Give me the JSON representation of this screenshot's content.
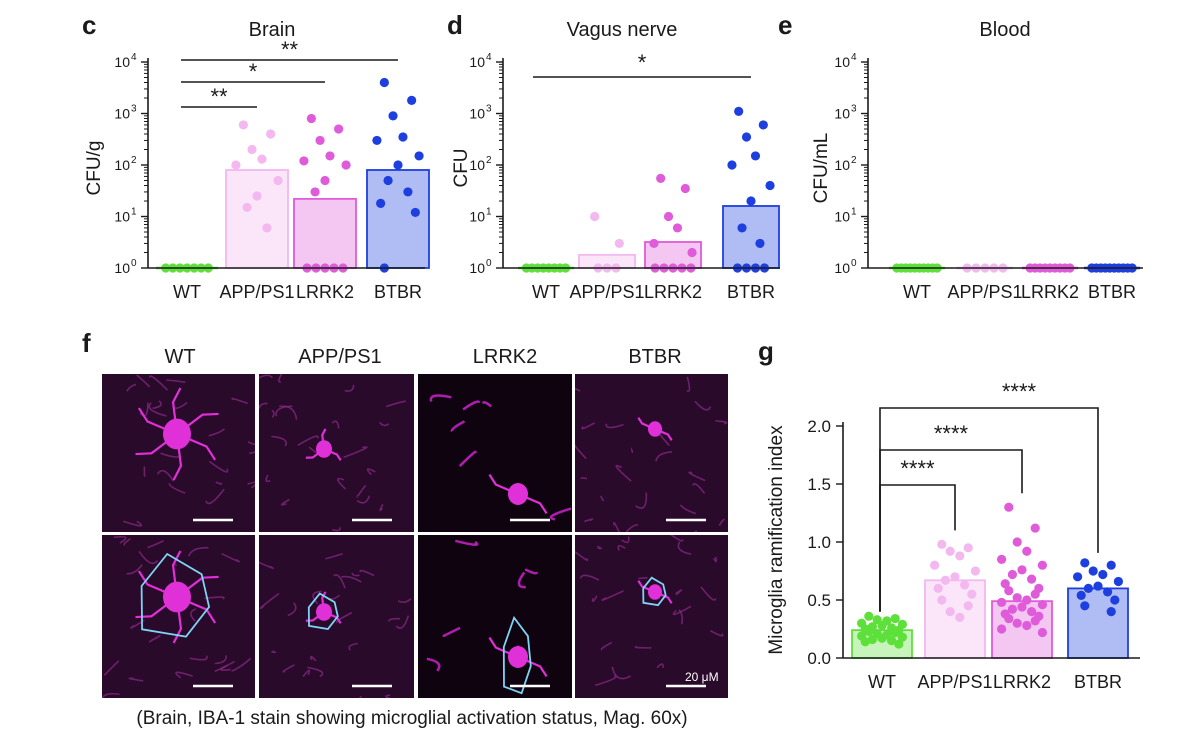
{
  "colors": {
    "wt": "#5ee03a",
    "app": "#f3b8ef",
    "lrrk2": "#df5bd9",
    "btbr": "#1d3fe0",
    "axis": "#1a1a1a",
    "hull": "#7fd3f5"
  },
  "chart_data": [
    {
      "id": "c",
      "panel_label": "c",
      "type": "bar",
      "title": "Brain",
      "ylabel": "CFU/g",
      "yscale": "log",
      "ylim": [
        1,
        10000
      ],
      "yticks": [
        {
          "base": "10",
          "exp": "0"
        },
        {
          "base": "10",
          "exp": "1"
        },
        {
          "base": "10",
          "exp": "2"
        },
        {
          "base": "10",
          "exp": "3"
        },
        {
          "base": "10",
          "exp": "4"
        }
      ],
      "categories": [
        "WT",
        "APP/PS1",
        "LRRK2",
        "BTBR"
      ],
      "bar_values": [
        1,
        80,
        22,
        80
      ],
      "points": [
        [
          1,
          1,
          1,
          1,
          1,
          1,
          1
        ],
        [
          600,
          400,
          200,
          130,
          100,
          50,
          25,
          15,
          6
        ],
        [
          800,
          500,
          300,
          150,
          120,
          100,
          50,
          30,
          1,
          1,
          1,
          1,
          1
        ],
        [
          4000,
          1800,
          900,
          350,
          300,
          150,
          100,
          50,
          30,
          18,
          12,
          1
        ]
      ],
      "significance": [
        {
          "from": 0,
          "to": 1,
          "label": "**"
        },
        {
          "from": 0,
          "to": 2,
          "label": "*"
        },
        {
          "from": 0,
          "to": 3,
          "label": "**"
        }
      ]
    },
    {
      "id": "d",
      "panel_label": "d",
      "type": "bar",
      "title": "Vagus nerve",
      "ylabel": "CFU",
      "yscale": "log",
      "ylim": [
        1,
        10000
      ],
      "yticks": [
        {
          "base": "10",
          "exp": "0"
        },
        {
          "base": "10",
          "exp": "1"
        },
        {
          "base": "10",
          "exp": "2"
        },
        {
          "base": "10",
          "exp": "3"
        },
        {
          "base": "10",
          "exp": "4"
        }
      ],
      "categories": [
        "WT",
        "APP/PS1",
        "LRRK2",
        "BTBR"
      ],
      "bar_values": [
        1,
        1.8,
        3.2,
        16
      ],
      "points": [
        [
          1,
          1,
          1,
          1,
          1,
          1,
          1,
          1
        ],
        [
          10,
          3,
          1,
          1,
          1
        ],
        [
          55,
          35,
          10,
          6,
          3,
          2,
          1,
          1,
          1,
          1,
          1
        ],
        [
          1100,
          600,
          350,
          150,
          100,
          40,
          20,
          6,
          3,
          1,
          1,
          1,
          1
        ]
      ],
      "significance": [
        {
          "from": 0,
          "to": 3,
          "label": "*"
        }
      ]
    },
    {
      "id": "e",
      "panel_label": "e",
      "type": "bar",
      "title": "Blood",
      "ylabel": "CFU/mL",
      "yscale": "log",
      "ylim": [
        1,
        10000
      ],
      "yticks": [
        {
          "base": "10",
          "exp": "0"
        },
        {
          "base": "10",
          "exp": "1"
        },
        {
          "base": "10",
          "exp": "2"
        },
        {
          "base": "10",
          "exp": "3"
        },
        {
          "base": "10",
          "exp": "4"
        }
      ],
      "categories": [
        "WT",
        "APP/PS1",
        "LRRK2",
        "BTBR"
      ],
      "bar_values": [
        1,
        1,
        1,
        1
      ],
      "points": [
        [
          1,
          1,
          1,
          1,
          1,
          1,
          1,
          1,
          1,
          1
        ],
        [
          1,
          1,
          1,
          1,
          1
        ],
        [
          1,
          1,
          1,
          1,
          1,
          1,
          1,
          1,
          1
        ],
        [
          1,
          1,
          1,
          1,
          1,
          1,
          1,
          1,
          1,
          1
        ]
      ],
      "significance": []
    },
    {
      "id": "g",
      "panel_label": "g",
      "type": "bar",
      "title": "",
      "ylabel": "Microglia ramification index",
      "yscale": "linear",
      "ylim": [
        0,
        2.0
      ],
      "yticks": [
        {
          "value": 0,
          "label": "0.0"
        },
        {
          "value": 0.5,
          "label": "0.5"
        },
        {
          "value": 1.0,
          "label": "1.0"
        },
        {
          "value": 1.5,
          "label": "1.5"
        },
        {
          "value": 2.0,
          "label": "2.0"
        }
      ],
      "categories": [
        "WT",
        "APP/PS1",
        "LRRK2",
        "BTBR"
      ],
      "bar_values": [
        0.24,
        0.67,
        0.49,
        0.6
      ],
      "points": [
        [
          0.36,
          0.34,
          0.33,
          0.32,
          0.3,
          0.29,
          0.28,
          0.27,
          0.26,
          0.25,
          0.24,
          0.23,
          0.22,
          0.21,
          0.2,
          0.19,
          0.18,
          0.17,
          0.16,
          0.15,
          0.14,
          0.12
        ],
        [
          0.98,
          0.95,
          0.92,
          0.88,
          0.8,
          0.75,
          0.7,
          0.67,
          0.63,
          0.6,
          0.55,
          0.5,
          0.45,
          0.4,
          0.35
        ],
        [
          1.3,
          1.12,
          1.0,
          0.92,
          0.85,
          0.8,
          0.76,
          0.72,
          0.68,
          0.64,
          0.6,
          0.58,
          0.55,
          0.52,
          0.5,
          0.48,
          0.46,
          0.44,
          0.42,
          0.4,
          0.38,
          0.36,
          0.34,
          0.32,
          0.3,
          0.28,
          0.25,
          0.22
        ],
        [
          0.82,
          0.8,
          0.75,
          0.72,
          0.7,
          0.66,
          0.62,
          0.6,
          0.57,
          0.54,
          0.5,
          0.45,
          0.4
        ]
      ],
      "significance": [
        {
          "from": 0,
          "to": 1,
          "label": "****"
        },
        {
          "from": 0,
          "to": 2,
          "label": "****"
        },
        {
          "from": 0,
          "to": 3,
          "label": "****"
        }
      ]
    }
  ],
  "micrographs": {
    "panel_label": "f",
    "columns": [
      "WT",
      "APP/PS1",
      "LRRK2",
      "BTBR"
    ],
    "scale_label": "20 μM",
    "caption": "(Brain, IBA-1 stain showing microglial activation status, Mag. 60x)"
  }
}
